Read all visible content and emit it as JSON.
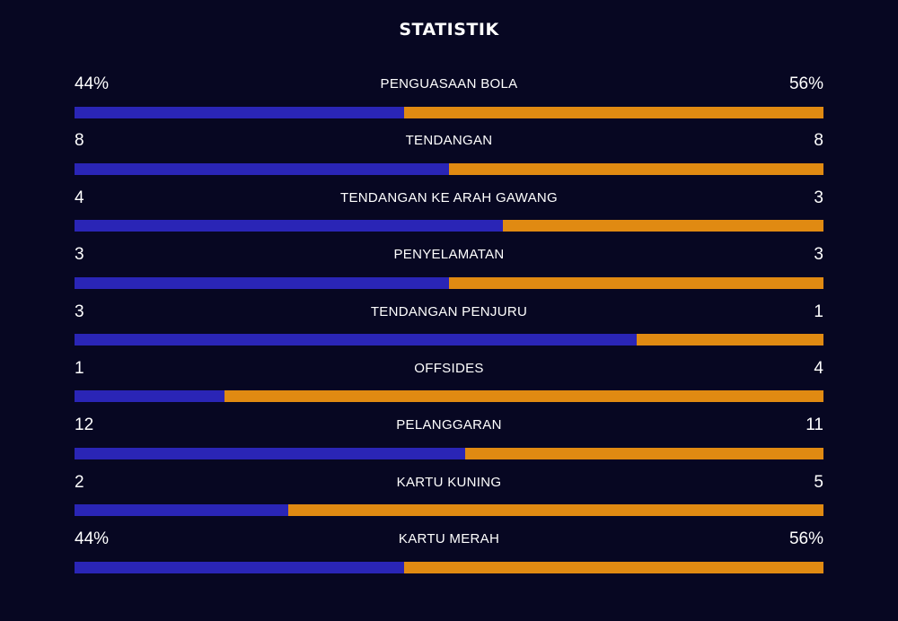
{
  "title": "STATISTIK",
  "colors": {
    "background": "#070722",
    "home_bar": "#2a25b6",
    "away_bar": "#e08a12",
    "text": "#ffffff"
  },
  "stats": [
    {
      "label": "PENGUASAAN BOLA",
      "left": "44%",
      "right": "56%",
      "left_share": 0.44
    },
    {
      "label": "TENDANGAN",
      "left": "8",
      "right": "8",
      "left_share": 0.5
    },
    {
      "label": "TENDANGAN KE ARAH GAWANG",
      "left": "4",
      "right": "3",
      "left_share": 0.5714
    },
    {
      "label": "PENYELAMATAN",
      "left": "3",
      "right": "3",
      "left_share": 0.5
    },
    {
      "label": "TENDANGAN PENJURU",
      "left": "3",
      "right": "1",
      "left_share": 0.75
    },
    {
      "label": "OFFSIDES",
      "left": "1",
      "right": "4",
      "left_share": 0.2
    },
    {
      "label": "PELANGGARAN",
      "left": "12",
      "right": "11",
      "left_share": 0.5217
    },
    {
      "label": "KARTU KUNING",
      "left": "2",
      "right": "5",
      "left_share": 0.2857
    },
    {
      "label": "KARTU MERAH",
      "left": "44%",
      "right": "56%",
      "left_share": 0.44
    }
  ]
}
